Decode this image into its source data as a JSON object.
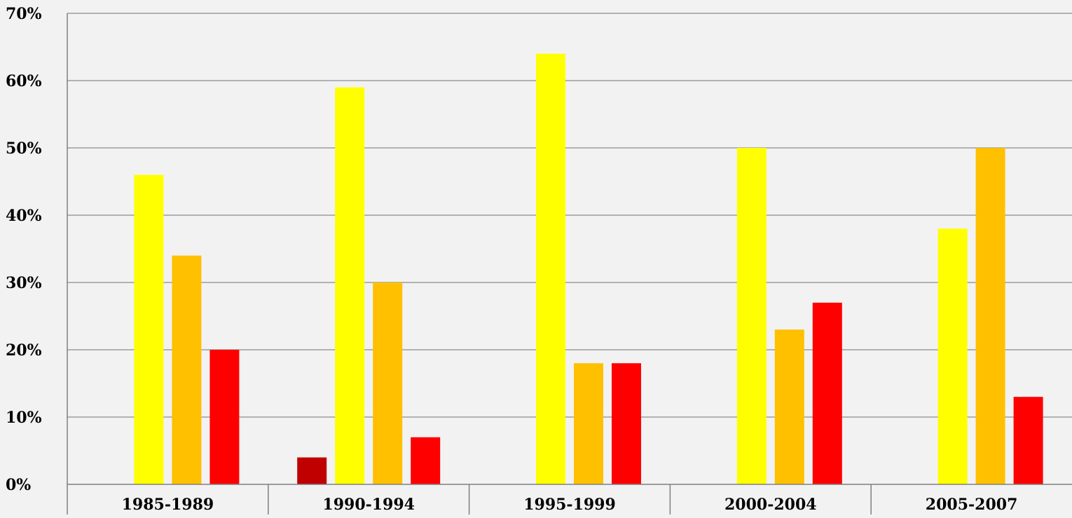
{
  "chart_data": {
    "type": "bar",
    "title": "",
    "xlabel": "",
    "ylabel": "",
    "categories": [
      "1985-1989",
      "1990-1994",
      "1995-1999",
      "2000-2004",
      "2005-2007"
    ],
    "series": [
      {
        "color": "#c00000",
        "values": [
          0,
          4,
          0,
          0,
          0
        ]
      },
      {
        "color": "#ffff00",
        "values": [
          46,
          59,
          64,
          50,
          38
        ]
      },
      {
        "color": "#ffc000",
        "values": [
          34,
          30,
          18,
          23,
          50
        ]
      },
      {
        "color": "#ff0000",
        "values": [
          20,
          7,
          18,
          27,
          13
        ]
      }
    ],
    "ylim": [
      0,
      70
    ],
    "yticks": [
      0,
      10,
      20,
      30,
      40,
      50,
      60,
      70
    ],
    "ytick_labels": [
      "0%",
      "10%",
      "20%",
      "30%",
      "40%",
      "50%",
      "60%",
      "70%"
    ],
    "grid": true,
    "legend": "none",
    "x_axis_style": "table-cells"
  }
}
